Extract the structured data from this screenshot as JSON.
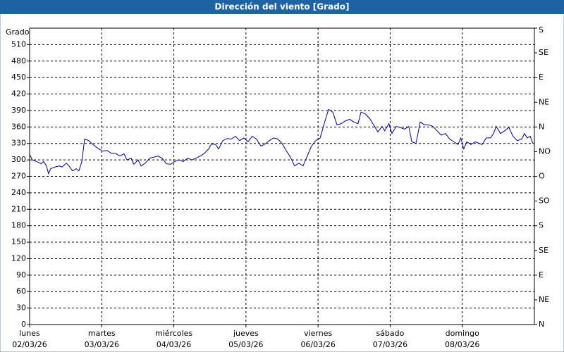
{
  "chart_data": {
    "type": "line",
    "title": "Dirección del viento [Grado]",
    "y_label": "Grado",
    "xlim": [
      0,
      168
    ],
    "ylim": [
      0,
      540
    ],
    "y2lim": [
      0,
      540
    ],
    "xticks": [
      {
        "value": 0,
        "label": "lunes",
        "date": "02/03/26"
      },
      {
        "value": 24,
        "label": "martes",
        "date": "03/03/26"
      },
      {
        "value": 48,
        "label": "miércoles",
        "date": "04/03/26"
      },
      {
        "value": 72,
        "label": "jueves",
        "date": "05/03/26"
      },
      {
        "value": 96,
        "label": "viernes",
        "date": "06/03/26"
      },
      {
        "value": 120,
        "label": "sábado",
        "date": "07/03/26"
      },
      {
        "value": 144,
        "label": "domingo",
        "date": "08/03/26"
      }
    ],
    "yticks": [
      0,
      30,
      60,
      90,
      120,
      150,
      180,
      210,
      240,
      270,
      300,
      330,
      360,
      390,
      420,
      450,
      480,
      510
    ],
    "y2ticks": [
      {
        "value": 540,
        "label": "S"
      },
      {
        "value": 495,
        "label": "SE"
      },
      {
        "value": 450,
        "label": "E"
      },
      {
        "value": 405,
        "label": "NE"
      },
      {
        "value": 360,
        "label": "N"
      },
      {
        "value": 315,
        "label": "NO"
      },
      {
        "value": 270,
        "label": "O"
      },
      {
        "value": 225,
        "label": "SO"
      },
      {
        "value": 180,
        "label": "S"
      },
      {
        "value": 135,
        "label": "SE"
      },
      {
        "value": 90,
        "label": "E"
      },
      {
        "value": 45,
        "label": "NE"
      },
      {
        "value": 0,
        "label": "N"
      }
    ],
    "grid": true,
    "x": [
      0,
      0.9,
      2.3,
      3.8,
      4.7,
      5.6,
      6.3,
      7.0,
      8.4,
      9.9,
      10.8,
      12.2,
      13.1,
      14.3,
      15.5,
      16.4,
      17.4,
      18.3,
      19.7,
      21.1,
      22.5,
      24.2,
      25.8,
      27.2,
      28.6,
      30.0,
      31.4,
      32.4,
      33.8,
      34.7,
      36.1,
      37.1,
      38.5,
      39.9,
      41.3,
      42.7,
      44.1,
      45.5,
      46.9,
      48.3,
      49.7,
      51.1,
      52.6,
      54.0,
      55.4,
      56.8,
      58.2,
      59.6,
      60.5,
      61.9,
      62.9,
      64.3,
      65.7,
      67.1,
      68.5,
      69.9,
      71.3,
      72.7,
      74.1,
      75.5,
      77.0,
      78.4,
      79.8,
      81.2,
      82.6,
      84.0,
      85.4,
      86.8,
      88.2,
      89.6,
      91.0,
      92.4,
      93.8,
      95.2,
      96.7,
      98.1,
      99.5,
      100.9,
      102.3,
      103.7,
      105.1,
      106.5,
      107.9,
      109.3,
      110.3,
      111.7,
      113.1,
      114.5,
      115.9,
      117.3,
      118.2,
      119.6,
      120.6,
      122.0,
      123.4,
      124.8,
      126.2,
      127.2,
      128.6,
      130.0,
      131.4,
      132.8,
      134.2,
      135.6,
      137.0,
      138.4,
      139.8,
      141.2,
      142.6,
      143.5,
      144.5,
      145.5,
      146.9,
      148.3,
      149.7,
      150.6,
      152.0,
      153.4,
      154.4,
      155.3,
      156.7,
      158.1,
      159.5,
      160.9,
      162.3,
      163.8,
      164.7,
      165.6,
      166.6,
      167.5
    ],
    "series": [
      {
        "color": "#00008b",
        "values": [
          310,
          300,
          297,
          293,
          297,
          289,
          275,
          284,
          287,
          289,
          287,
          294,
          289,
          280,
          284,
          280,
          297,
          338,
          335,
          328,
          322,
          316,
          317,
          312,
          312,
          307,
          311,
          300,
          303,
          292,
          300,
          289,
          294,
          303,
          305,
          307,
          303,
          293,
          292,
          297,
          300,
          297,
          303,
          300,
          303,
          307,
          312,
          320,
          329,
          328,
          320,
          335,
          339,
          338,
          343,
          335,
          340,
          333,
          343,
          338,
          325,
          329,
          335,
          340,
          338,
          330,
          317,
          305,
          289,
          294,
          289,
          307,
          325,
          335,
          340,
          367,
          392,
          387,
          364,
          366,
          371,
          374,
          369,
          366,
          387,
          384,
          376,
          364,
          351,
          361,
          353,
          366,
          348,
          361,
          359,
          356,
          361,
          333,
          330,
          369,
          364,
          364,
          361,
          353,
          345,
          348,
          338,
          333,
          328,
          340,
          320,
          333,
          328,
          333,
          330,
          328,
          340,
          340,
          348,
          361,
          348,
          353,
          359,
          343,
          335,
          338,
          348,
          340,
          343,
          330
        ]
      }
    ]
  }
}
